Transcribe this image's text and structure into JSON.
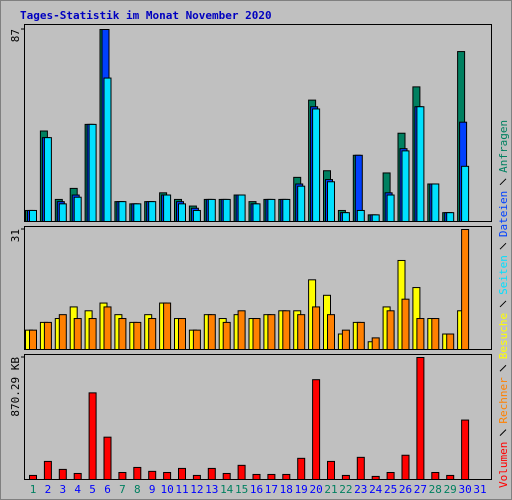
{
  "title": "Tages-Statistik im Monat November 2020",
  "chart_data": [
    {
      "type": "bar",
      "ylim": [
        0,
        87
      ],
      "yticks": [
        87
      ],
      "series": [
        {
          "name": "Anfragen",
          "color": "#008060",
          "values": [
            5,
            41,
            10,
            15,
            44,
            87,
            9,
            8,
            9,
            13,
            10,
            7,
            10,
            10,
            12,
            9,
            10,
            10,
            20,
            55,
            23,
            5,
            30,
            3,
            22,
            40,
            61,
            17,
            4,
            77,
            0
          ]
        },
        {
          "name": "Dateien",
          "color": "#0040ff",
          "values": [
            5,
            38,
            9,
            12,
            44,
            87,
            9,
            8,
            9,
            12,
            9,
            6,
            10,
            10,
            12,
            8,
            10,
            10,
            17,
            52,
            19,
            4,
            30,
            3,
            13,
            33,
            52,
            17,
            4,
            45,
            0
          ]
        },
        {
          "name": "Seiten",
          "color": "#00e0ff",
          "values": [
            5,
            38,
            8,
            11,
            44,
            65,
            9,
            8,
            9,
            12,
            8,
            5,
            10,
            10,
            12,
            8,
            10,
            10,
            16,
            51,
            18,
            4,
            5,
            3,
            12,
            32,
            52,
            17,
            4,
            25,
            0
          ]
        }
      ]
    },
    {
      "type": "bar",
      "ylim": [
        0,
        31
      ],
      "yticks": [
        31
      ],
      "series": [
        {
          "name": "Besuche",
          "color": "#ffff00",
          "values": [
            5,
            7,
            8,
            11,
            10,
            12,
            9,
            7,
            9,
            12,
            8,
            5,
            9,
            8,
            9,
            8,
            9,
            10,
            10,
            18,
            14,
            4,
            7,
            2,
            11,
            23,
            16,
            8,
            4,
            10,
            0
          ]
        },
        {
          "name": "Rechner",
          "color": "#ff8000",
          "values": [
            5,
            7,
            9,
            8,
            8,
            11,
            8,
            7,
            8,
            12,
            8,
            5,
            9,
            7,
            10,
            8,
            9,
            10,
            9,
            11,
            9,
            5,
            7,
            3,
            10,
            13,
            8,
            8,
            4,
            31,
            0
          ]
        }
      ]
    },
    {
      "type": "bar",
      "ylim": [
        0,
        870.29
      ],
      "yticks": [
        {
          "value": 870.29,
          "label": "870.29 KB"
        }
      ],
      "categories": [
        "1",
        "2",
        "3",
        "4",
        "5",
        "6",
        "7",
        "8",
        "9",
        "10",
        "11",
        "12",
        "13",
        "14",
        "15",
        "16",
        "17",
        "18",
        "19",
        "20",
        "21",
        "22",
        "23",
        "24",
        "25",
        "26",
        "27",
        "28",
        "29",
        "30",
        "31"
      ],
      "category_colors": [
        "#008060",
        "#0000ff",
        "#0000ff",
        "#0000ff",
        "#0000ff",
        "#0000ff",
        "#008060",
        "#008060",
        "#0000ff",
        "#0000ff",
        "#0000ff",
        "#0000ff",
        "#0000ff",
        "#008060",
        "#008060",
        "#0000ff",
        "#0000ff",
        "#0000ff",
        "#0000ff",
        "#0000ff",
        "#008060",
        "#008060",
        "#0000ff",
        "#0000ff",
        "#0000ff",
        "#0000ff",
        "#0000ff",
        "#008060",
        "#008060",
        "#0000ff",
        "#0000ff"
      ],
      "series": [
        {
          "name": "Volumen",
          "color": "#ff0000",
          "values": [
            29,
            129,
            72,
            43,
            618,
            302,
            50,
            86,
            58,
            50,
            79,
            29,
            79,
            43,
            101,
            36,
            36,
            36,
            151,
            712,
            129,
            29,
            158,
            22,
            50,
            173,
            870.29,
            50,
            29,
            424,
            0
          ]
        }
      ]
    }
  ]
}
